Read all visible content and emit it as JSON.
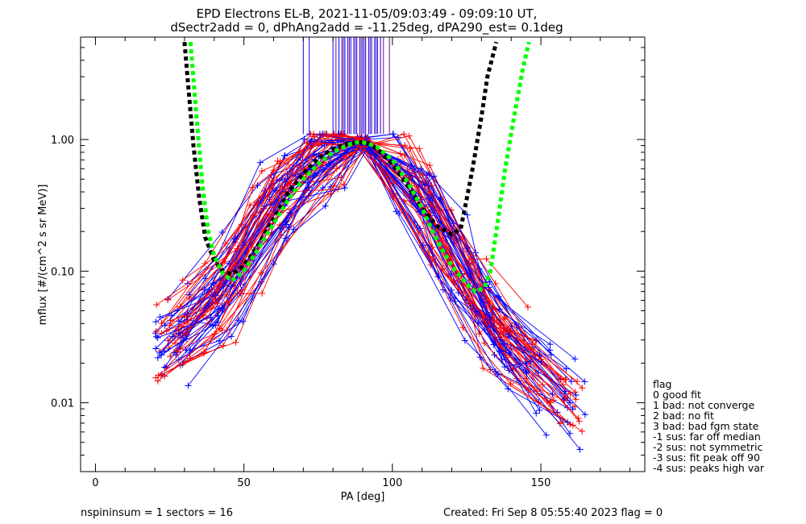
{
  "chart_data": {
    "type": "line",
    "title": "EPD Electrons EL-B, 2021-11-05/09:03:49 - 09:09:10 UT,",
    "subtitle": "dSectr2add = 0, dPhAng2add = -11.25deg, dPA290_est=   0.1deg",
    "xlabel": "PA [deg]",
    "ylabel": "mflux [#/(cm^2 s sr MeV)]",
    "xlim": [
      -5,
      185
    ],
    "ylim": [
      0.003,
      6
    ],
    "yscale": "log",
    "x_ticks": [
      0,
      50,
      100,
      150
    ],
    "x_tick_labels": [
      "0",
      "50",
      "100",
      "150"
    ],
    "y_ticks": [
      0.01,
      0.1,
      1.0
    ],
    "y_tick_labels": [
      "0.01",
      "0.10",
      "1.00"
    ],
    "colors": {
      "blue": "#0000ff",
      "red": "#ff0000",
      "green": "#00ff00",
      "black": "#000000",
      "purple": "#800080"
    },
    "fit_curves": [
      {
        "color": "#000000",
        "x": [
          30,
          31,
          33,
          35,
          37,
          40,
          43,
          46,
          50,
          55,
          60,
          65,
          70,
          75,
          80,
          85,
          88,
          90,
          92,
          95,
          100,
          105,
          110,
          115,
          120,
          123,
          125,
          127,
          130,
          132,
          135
        ],
        "y": [
          5.5,
          3.0,
          0.9,
          0.35,
          0.18,
          0.12,
          0.1,
          0.095,
          0.11,
          0.16,
          0.25,
          0.4,
          0.55,
          0.72,
          0.85,
          0.93,
          0.95,
          0.95,
          0.93,
          0.85,
          0.65,
          0.45,
          0.3,
          0.22,
          0.19,
          0.21,
          0.35,
          0.6,
          1.5,
          3.0,
          5.5
        ]
      },
      {
        "color": "#00ff00",
        "x": [
          32,
          34,
          36,
          38,
          40,
          43,
          46,
          50,
          55,
          60,
          65,
          70,
          75,
          80,
          85,
          88,
          90,
          92,
          95,
          100,
          105,
          110,
          115,
          120,
          125,
          128,
          131,
          133,
          135,
          138,
          141,
          144,
          146
        ],
        "y": [
          5.5,
          1.5,
          0.45,
          0.2,
          0.13,
          0.095,
          0.085,
          0.1,
          0.15,
          0.23,
          0.35,
          0.5,
          0.65,
          0.8,
          0.91,
          0.95,
          0.95,
          0.93,
          0.87,
          0.7,
          0.48,
          0.3,
          0.17,
          0.11,
          0.08,
          0.07,
          0.075,
          0.1,
          0.2,
          0.6,
          1.5,
          3.5,
          5.5
        ]
      }
    ],
    "spin_lines": {
      "blue_x": [
        70,
        72,
        80,
        82,
        83,
        84,
        85,
        86,
        87,
        88,
        89,
        90,
        91,
        92,
        93,
        94,
        95,
        96
      ],
      "purple_x": [
        81,
        83.5,
        85.5,
        87.5,
        89.5,
        90.5,
        92.5,
        94.5,
        97,
        99
      ],
      "top": 6,
      "bottom": 1.1
    },
    "median_points": {
      "x": [
        27.5,
        30,
        35,
        40,
        45,
        50,
        55,
        60,
        65,
        70,
        75,
        80,
        85,
        90,
        95,
        100,
        105,
        110,
        115,
        120,
        125,
        130,
        135,
        140,
        145,
        150,
        155,
        160
      ],
      "y": [
        0.03,
        0.035,
        0.045,
        0.06,
        0.08,
        0.12,
        0.22,
        0.35,
        0.5,
        0.65,
        0.78,
        0.88,
        0.93,
        0.95,
        0.9,
        0.75,
        0.55,
        0.38,
        0.22,
        0.12,
        0.07,
        0.04,
        0.035,
        0.028,
        0.02,
        0.015,
        0.012,
        0.01
      ]
    },
    "legend_title": "flag",
    "legend": [
      " 0 good fit",
      " 1 bad: not converge",
      " 2 bad: no fit",
      " 3 bad: bad fgm state",
      "-1 sus: far off median",
      "-2 sus: not symmetric",
      "-3 sus: fit peak off 90",
      "-4 sus: peaks high var"
    ],
    "legend_placement": "right-bottom outside",
    "grid": false
  },
  "footer": {
    "left": "nspininsum =  1  sectors = 16",
    "right": "Created: Fri Sep  8 05:55:40 2023   flag = 0"
  }
}
